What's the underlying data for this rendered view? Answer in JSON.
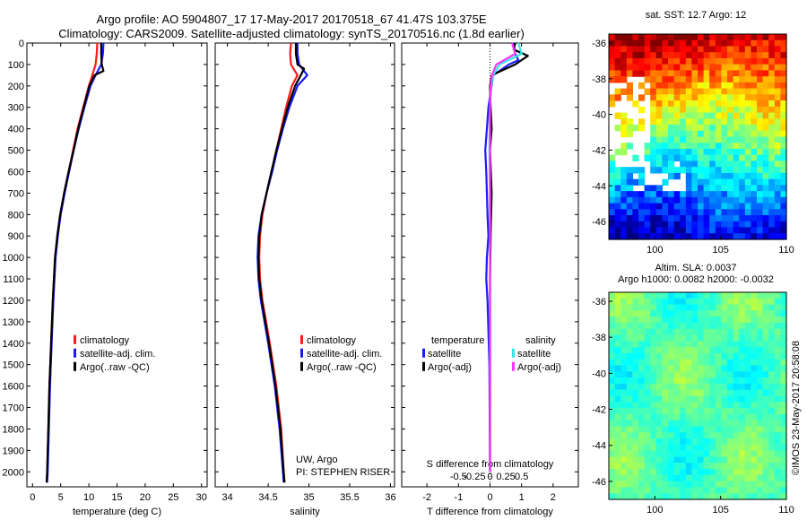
{
  "header": {
    "line1": "Argo profile: AO 5904807_17 17-May-2017 20170518_67 41.47S 103.375E",
    "line2": "Climatology: CARS2009. Satellite-adjusted climatology: synTS_20170516.nc (1.8d earlier)"
  },
  "side_label": "©IMOS 23-May-2017 20:58:08",
  "map_sst": {
    "title": "sat. SST: 12.7 Argo: 12"
  },
  "map_sla": {
    "title1": "Altim. SLA: 0.0037",
    "title2": "Argo h1000: 0.0082 h2000: -0.0032"
  },
  "colors": {
    "climatology": "#ff1a1a",
    "satellite": "#1a1aff",
    "argo": "#000000",
    "satellite_salinity": "#33e6e6",
    "argo_salinity": "#ff33ff"
  },
  "chart_data": [
    {
      "type": "line",
      "name": "temperature",
      "xlabel": "temperature (deg C)",
      "ylabel": "",
      "xlim": [
        -1,
        31
      ],
      "ylim": [
        2070,
        0
      ],
      "xticks": [
        0,
        5,
        10,
        15,
        20,
        25,
        30
      ],
      "yticks": [
        0,
        100,
        200,
        300,
        400,
        500,
        600,
        700,
        800,
        900,
        1000,
        1100,
        1200,
        1300,
        1400,
        1500,
        1600,
        1700,
        1800,
        1900,
        2000
      ],
      "legend": [
        "climatology",
        "satellite-adj. clim.",
        "Argo(..raw -QC)"
      ],
      "legend_position": "lower-right",
      "series": [
        {
          "name": "climatology",
          "depth": [
            0,
            50,
            100,
            150,
            200,
            300,
            400,
            500,
            600,
            700,
            800,
            900,
            1000,
            1200,
            1400,
            1600,
            1800,
            2000,
            2050
          ],
          "values": [
            11.5,
            11.4,
            11.2,
            10.6,
            10.0,
            9.0,
            8.0,
            7.2,
            6.4,
            5.6,
            4.9,
            4.4,
            4.0,
            3.6,
            3.3,
            3.0,
            2.8,
            2.6,
            2.5
          ]
        },
        {
          "name": "satellite-adj. clim.",
          "depth": [
            0,
            50,
            100,
            150,
            200,
            300,
            400,
            500,
            600,
            700,
            800,
            900,
            1000,
            1200,
            1400,
            1600,
            1800,
            2000,
            2050
          ],
          "values": [
            12.6,
            12.5,
            12.2,
            11.2,
            10.3,
            9.2,
            8.2,
            7.3,
            6.5,
            5.7,
            5.0,
            4.5,
            4.1,
            3.7,
            3.4,
            3.1,
            2.9,
            2.7,
            2.6
          ]
        },
        {
          "name": "Argo(..raw -QC)",
          "depth": [
            0,
            50,
            100,
            130,
            150,
            200,
            300,
            400,
            500,
            600,
            700,
            800,
            900,
            1000,
            1200,
            1400,
            1600,
            1800,
            2000,
            2050
          ],
          "values": [
            12.2,
            12.2,
            12.3,
            12.6,
            11.0,
            10.1,
            9.1,
            8.1,
            7.3,
            6.4,
            5.6,
            4.9,
            4.4,
            4.0,
            3.6,
            3.3,
            3.0,
            2.8,
            2.6,
            2.5
          ]
        }
      ]
    },
    {
      "type": "line",
      "name": "salinity",
      "xlabel": "salinity",
      "ylabel": "",
      "xlim": [
        33.85,
        36.05
      ],
      "ylim": [
        2070,
        0
      ],
      "xticks": [
        34,
        34.5,
        35,
        35.5,
        36
      ],
      "xticklabels": [
        "34",
        "34.5",
        "35",
        "35.5",
        "36"
      ],
      "legend": [
        "climatology",
        "satellite-adj. clim.",
        "Argo(..raw -QC)"
      ],
      "legend_position": "lower-right",
      "annotation": [
        "UW, Argo",
        "PI: STEPHEN RISER"
      ],
      "series": [
        {
          "name": "climatology",
          "depth": [
            0,
            50,
            100,
            150,
            200,
            300,
            400,
            500,
            600,
            700,
            800,
            900,
            1000,
            1100,
            1200,
            1400,
            1600,
            1800,
            2000,
            2050
          ],
          "values": [
            34.78,
            34.77,
            34.78,
            34.86,
            34.79,
            34.72,
            34.66,
            34.6,
            34.54,
            34.48,
            34.43,
            34.4,
            34.39,
            34.4,
            34.43,
            34.52,
            34.6,
            34.66,
            34.69,
            34.7
          ]
        },
        {
          "name": "satellite-adj. clim.",
          "depth": [
            0,
            50,
            100,
            150,
            200,
            300,
            400,
            500,
            600,
            700,
            800,
            900,
            1000,
            1100,
            1200,
            1400,
            1600,
            1800,
            2000,
            2050
          ],
          "values": [
            34.86,
            34.86,
            34.88,
            34.98,
            34.86,
            34.76,
            34.68,
            34.61,
            34.55,
            34.48,
            34.42,
            34.38,
            34.37,
            34.38,
            34.41,
            34.5,
            34.58,
            34.64,
            34.68,
            34.69
          ]
        },
        {
          "name": "Argo(..raw -QC)",
          "depth": [
            0,
            50,
            100,
            120,
            150,
            200,
            300,
            400,
            500,
            600,
            700,
            800,
            900,
            1000,
            1100,
            1200,
            1400,
            1600,
            1800,
            2000,
            2050
          ],
          "values": [
            34.84,
            34.84,
            34.86,
            34.94,
            34.9,
            34.83,
            34.74,
            34.67,
            34.6,
            34.54,
            34.48,
            34.42,
            34.39,
            34.38,
            34.39,
            34.42,
            34.51,
            34.59,
            34.65,
            34.69,
            34.7
          ]
        }
      ]
    },
    {
      "type": "line",
      "name": "difference",
      "xlabel": "T difference from climatology",
      "xlabel_top": "S difference from climatology",
      "ylabel": "",
      "xlim": [
        -2.8,
        2.8
      ],
      "ylim": [
        2070,
        0
      ],
      "xticks": [
        -2,
        -1,
        0,
        1,
        2
      ],
      "sticks": [
        -0.5,
        -0.25,
        0,
        0.25,
        0.5
      ],
      "sticklabels": [
        "-0.5",
        "-0.25",
        "0",
        "0.25",
        "0.5"
      ],
      "legend_temperature_title": "temperature",
      "legend_salinity_title": "salinity",
      "legend": [
        "satellite",
        "Argo(-adj)",
        "satellite",
        "Argo(-adj)"
      ],
      "series": [
        {
          "name": "satellite",
          "depth": [
            0,
            50,
            80,
            100,
            150,
            200,
            300,
            400,
            500,
            600,
            700,
            800,
            900,
            1000,
            1100,
            1200,
            1500,
            2000
          ],
          "values": [
            0.75,
            0.8,
            0.9,
            0.6,
            0.1,
            0.05,
            -0.05,
            -0.1,
            -0.15,
            -0.12,
            -0.1,
            -0.08,
            -0.05,
            -0.1,
            -0.12,
            -0.08,
            -0.02,
            0.0
          ]
        },
        {
          "name": "Argo(-adj)",
          "depth": [
            0,
            30,
            60,
            100,
            150,
            200,
            300,
            400,
            500,
            700,
            900,
            1100,
            1300,
            1600,
            2000
          ],
          "values": [
            0.8,
            0.75,
            1.2,
            0.8,
            0.05,
            0.0,
            0.02,
            0.05,
            0.0,
            0.05,
            0.02,
            0.0,
            0.0,
            0.0,
            0.0
          ]
        },
        {
          "name": "satellite",
          "depth": [
            0,
            50,
            100,
            150,
            200,
            300,
            500,
            700,
            900,
            1100,
            1300,
            1600,
            2000
          ],
          "values": [
            0.45,
            0.5,
            0.15,
            0.05,
            0.02,
            0.0,
            -0.01,
            0.0,
            0.0,
            0.0,
            0.0,
            0.0,
            0.0
          ]
        },
        {
          "name": "Argo(-adj)",
          "depth": [
            0,
            50,
            100,
            150,
            200,
            300,
            500,
            700,
            900,
            1100,
            1300,
            1600,
            2000
          ],
          "values": [
            0.35,
            0.4,
            0.1,
            0.03,
            0.01,
            0.0,
            0.0,
            0.0,
            0.0,
            0.0,
            0.0,
            0.0,
            0.0
          ]
        }
      ]
    },
    {
      "type": "heatmap",
      "name": "sat-sst-map",
      "xlim": [
        96.5,
        110
      ],
      "ylim": [
        -47,
        -35.5
      ],
      "xticks": [
        100,
        105,
        110
      ],
      "yticks": [
        -36,
        -38,
        -40,
        -42,
        -44,
        -46
      ]
    },
    {
      "type": "heatmap",
      "name": "altim-sla-map",
      "xlim": [
        96.5,
        110
      ],
      "ylim": [
        -47,
        -35.5
      ],
      "xticks": [
        100,
        105,
        110
      ],
      "yticks": [
        -36,
        -38,
        -40,
        -42,
        -44,
        -46
      ]
    }
  ]
}
